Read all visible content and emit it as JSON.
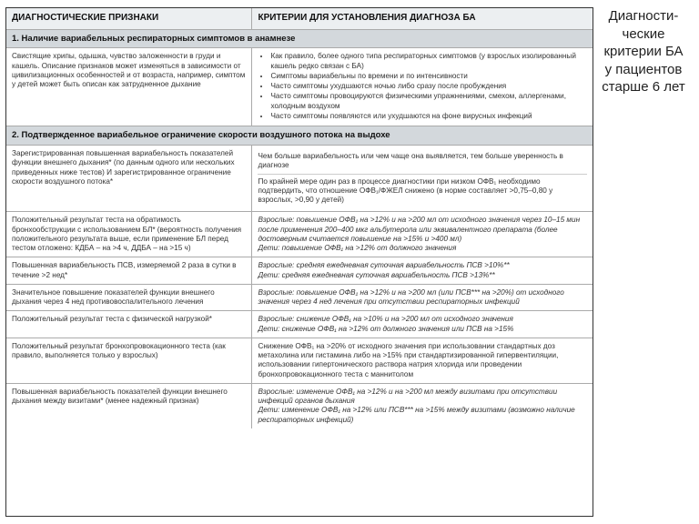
{
  "sideTitle": "Диагности-\nческие критерии БА у пациентов старше 6 лет",
  "header": {
    "c1": "ДИАГНОСТИЧЕСКИЕ ПРИЗНАКИ",
    "c2": "КРИТЕРИИ ДЛЯ УСТАНОВЛЕНИЯ ДИАГНОЗА БА"
  },
  "section1": "1. Наличие вариабельных респираторных симптомов в анамнезе",
  "s1_left": "Свистящие хрипы, одышка, чувство заложенности в груди и кашель. Описание признаков может изменяться в зависимости от цивилизационных особенностей и от возраста, например, симптом у детей может быть описан как затрудненное дыхание",
  "s1_b1": "Как правило, более одного типа респираторных симптомов (у взрослых изолированный кашель редко связан с БА)",
  "s1_b2": "Симптомы вариабельны по времени и по интенсивности",
  "s1_b3": "Часто симптомы ухудшаются ночью либо сразу после пробуждения",
  "s1_b4": "Часто симптомы провоцируются физическими упражнениями, смехом, аллергенами, холодным воздухом",
  "s1_b5": "Часто симптомы появляются или ухудшаются на фоне вирусных инфекций",
  "section2": "2. Подтвержденное вариабельное ограничение скорости воздушного потока на выдохе",
  "r2a_left": "Зарегистрированная повышенная вариабельность показателей функции внешнего дыхания* (по данным одного или нескольких приведенных ниже тестов) И зарегистрированное ограничение скорости воздушного потока*",
  "r2a_r1": "Чем больше вариабельность или чем чаще она выявляется, тем больше уверенность в диагнозе",
  "r2a_r2": "По крайней мере один раз в процессе диагностики при низком ОФВ₁ необходимо подтвердить, что отношение ОФВ₁/ФЖЕЛ снижено (в норме составляет >0,75–0,80 у взрослых, >0,90 у детей)",
  "r2b_left": "Положительный результат теста на обратимость бронхообструкции с использованием БЛ* (вероятность получения положительного результата выше, если применение БЛ перед тестом отложено: КДБА – на >4 ч, ДДБА – на >15 ч)",
  "r2b_r1": "Взрослые: повышение ОФВ₁ на >12% и на >200 мл от исходного значения через 10–15 мин после применения 200–400 мкг альбутерола или эквивалентного препарата (более достоверным считается повышение на >15% и >400 мл)",
  "r2b_r2": "Дети: повышение ОФВ₁ на >12% от должного значения",
  "r2c_left": "Повышенная вариабельность ПСВ, измеряемой 2 раза в сутки в течение >2 нед*",
  "r2c_r1": "Взрослые: средняя ежедневная суточная вариабельность ПСВ >10%**",
  "r2c_r2": "Дети: средняя ежедневная суточная вариабельность ПСВ >13%**",
  "r2d_left": "Значительное повышение показателей функции внешнего дыхания через 4 нед противовоспалительного лечения",
  "r2d_r": "Взрослые: повышение ОФВ₁ на >12% и на >200 мл (или ПСВ*** на >20%) от исходного значения через 4 нед лечения при отсутствии респираторных инфекций",
  "r2e_left": "Положительный результат теста с физической нагрузкой*",
  "r2e_r1": "Взрослые: снижение ОФВ₁ на >10% и на >200 мл от исходного значения",
  "r2e_r2": "Дети: снижение ОФВ₁ на >12% от должного значения или ПСВ на >15%",
  "r2f_left": "Положительный результат бронхопровокационного теста (как правило, выполняется только у взрослых)",
  "r2f_r": "Снижение ОФВ₁ на >20% от исходного значения при использовании стандартных доз метахолина или гистамина либо на >15% при стандартизированной гипервентиляции, использовании гипертонического раствора натрия хлорида или проведении бронхопровокационного теста с маннитолом",
  "r2g_left": "Повышенная вариабельность показателей функции внешнего дыхания между визитами* (менее надежный признак)",
  "r2g_r1": "Взрослые: изменение ОФВ₁ на >12% и на >200 мл между визитами при отсутствии инфекций органов дыхания",
  "r2g_r2": "Дети: изменение ОФВ₁ на >12% или ПСВ*** на >15% между визитами (возможно наличие респираторных инфекций)"
}
